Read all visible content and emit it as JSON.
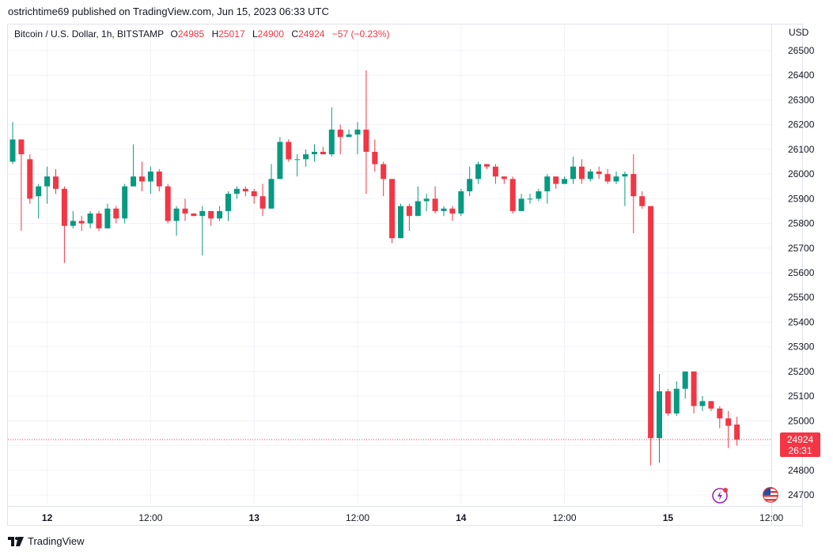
{
  "publisher": "ostrichtime69 published on TradingView.com, Jun 15, 2023 06:33 UTC",
  "legend": {
    "symbol": "Bitcoin / U.S. Dollar, 1h, BITSTAMP",
    "o_label": "O",
    "o": "24985",
    "h_label": "H",
    "h": "25017",
    "l_label": "L",
    "l": "24900",
    "c_label": "C",
    "c": "24924",
    "change": "−57 (−0.23%)"
  },
  "currency": "USD",
  "price_tag": {
    "price": "24924",
    "countdown": "26:31"
  },
  "footer": {
    "brand": "TradingView"
  },
  "icons": [
    "tradingview-logo-icon",
    "lightning-icon",
    "us-flag-icon"
  ],
  "colors": {
    "up": "#089981",
    "down": "#f23645",
    "grid": "#f0f3fa",
    "text": "#131722"
  },
  "chart_data": {
    "type": "candlestick",
    "y_ticks": [
      24700,
      24800,
      24900,
      25000,
      25100,
      25200,
      25300,
      25400,
      25500,
      25600,
      25700,
      25800,
      25900,
      26000,
      26100,
      26200,
      26300,
      26400,
      26500
    ],
    "x_ticks": [
      {
        "label": "12",
        "bar": 4,
        "bold": true
      },
      {
        "label": "12:00",
        "bar": 16,
        "bold": false
      },
      {
        "label": "13",
        "bar": 28,
        "bold": true
      },
      {
        "label": "12:00",
        "bar": 40,
        "bold": false
      },
      {
        "label": "14",
        "bar": 52,
        "bold": true
      },
      {
        "label": "12:00",
        "bar": 64,
        "bold": false
      },
      {
        "label": "15",
        "bar": 76,
        "bold": true
      },
      {
        "label": "12:00",
        "bar": 88,
        "bold": false
      }
    ],
    "ylim": [
      24650,
      26560
    ],
    "grid": true,
    "last_price": 24924,
    "candles": [
      [
        26050,
        26140,
        26210,
        26040
      ],
      [
        26140,
        26080,
        26140,
        25770
      ],
      [
        26060,
        25900,
        26080,
        25880
      ],
      [
        25910,
        25950,
        25960,
        25820
      ],
      [
        25950,
        25990,
        26030,
        25880
      ],
      [
        25990,
        25940,
        26020,
        25920
      ],
      [
        25940,
        25790,
        25950,
        25640
      ],
      [
        25790,
        25810,
        25850,
        25780
      ],
      [
        25810,
        25800,
        25830,
        25770
      ],
      [
        25800,
        25840,
        25850,
        25780
      ],
      [
        25840,
        25780,
        25850,
        25770
      ],
      [
        25780,
        25860,
        25880,
        25780
      ],
      [
        25860,
        25820,
        25870,
        25800
      ],
      [
        25820,
        25950,
        25960,
        25800
      ],
      [
        25950,
        25990,
        26120,
        25950
      ],
      [
        25990,
        25970,
        26050,
        25930
      ],
      [
        25970,
        26010,
        26030,
        25920
      ],
      [
        26010,
        25950,
        26020,
        25930
      ],
      [
        25950,
        25810,
        25960,
        25800
      ],
      [
        25810,
        25860,
        25870,
        25750
      ],
      [
        25860,
        25840,
        25900,
        25810
      ],
      [
        25840,
        25830,
        25840,
        25830
      ],
      [
        25830,
        25850,
        25870,
        25670
      ],
      [
        25850,
        25820,
        25850,
        25790
      ],
      [
        25820,
        25850,
        25870,
        25810
      ],
      [
        25850,
        25920,
        25930,
        25810
      ],
      [
        25920,
        25940,
        25950,
        25900
      ],
      [
        25940,
        25930,
        25950,
        25910
      ],
      [
        25930,
        25910,
        25940,
        25880
      ],
      [
        25910,
        25860,
        25960,
        25830
      ],
      [
        25860,
        25980,
        26040,
        25860
      ],
      [
        25980,
        26130,
        26150,
        25980
      ],
      [
        26130,
        26060,
        26140,
        26050
      ],
      [
        26060,
        26060,
        26080,
        25990
      ],
      [
        26060,
        26080,
        26100,
        26030
      ],
      [
        26080,
        26090,
        26120,
        26050
      ],
      [
        26090,
        26080,
        26110,
        26080
      ],
      [
        26080,
        26180,
        26270,
        26070
      ],
      [
        26180,
        26150,
        26200,
        26080
      ],
      [
        26150,
        26160,
        26180,
        26150
      ],
      [
        26160,
        26180,
        26210,
        26080
      ],
      [
        26180,
        26090,
        26420,
        25920
      ],
      [
        26090,
        26040,
        26140,
        26010
      ],
      [
        26040,
        25980,
        26050,
        25910
      ],
      [
        25980,
        25740,
        25980,
        25720
      ],
      [
        25740,
        25870,
        25880,
        25740
      ],
      [
        25870,
        25830,
        25880,
        25770
      ],
      [
        25830,
        25890,
        25950,
        25830
      ],
      [
        25890,
        25900,
        25920,
        25850
      ],
      [
        25900,
        25850,
        25950,
        25840
      ],
      [
        25850,
        25860,
        25870,
        25830
      ],
      [
        25860,
        25840,
        25870,
        25810
      ],
      [
        25840,
        25930,
        25940,
        25830
      ],
      [
        25930,
        25980,
        26030,
        25910
      ],
      [
        25980,
        26040,
        26050,
        25960
      ],
      [
        26040,
        26030,
        26040,
        26020
      ],
      [
        26030,
        25990,
        26040,
        25960
      ],
      [
        25990,
        25980,
        25990,
        25960
      ],
      [
        25980,
        25850,
        25990,
        25840
      ],
      [
        25850,
        25900,
        25920,
        25850
      ],
      [
        25900,
        25900,
        25920,
        25880
      ],
      [
        25900,
        25930,
        25940,
        25890
      ],
      [
        25930,
        25990,
        26000,
        25880
      ],
      [
        25990,
        25960,
        25990,
        25940
      ],
      [
        25960,
        25980,
        25990,
        25960
      ],
      [
        25980,
        26030,
        26070,
        25960
      ],
      [
        26030,
        25980,
        26060,
        25960
      ],
      [
        25980,
        26010,
        26020,
        25970
      ],
      [
        26010,
        26000,
        26030,
        25980
      ],
      [
        26000,
        25970,
        26020,
        25960
      ],
      [
        25970,
        25990,
        26010,
        25960
      ],
      [
        25990,
        26000,
        26010,
        25870
      ],
      [
        26000,
        25910,
        26080,
        25760
      ],
      [
        25910,
        25870,
        25930,
        25860
      ],
      [
        25870,
        24930,
        25870,
        24820
      ],
      [
        24930,
        25120,
        25190,
        24830
      ],
      [
        25120,
        25030,
        25130,
        25020
      ],
      [
        25030,
        25130,
        25160,
        25020
      ],
      [
        25130,
        25200,
        25200,
        25090
      ],
      [
        25200,
        25060,
        25200,
        25030
      ],
      [
        25060,
        25080,
        25100,
        25040
      ],
      [
        25080,
        25050,
        25080,
        25040
      ],
      [
        25050,
        25010,
        25060,
        24970
      ],
      [
        25010,
        24980,
        25040,
        24890
      ],
      [
        24985,
        24924,
        25017,
        24900
      ]
    ]
  }
}
